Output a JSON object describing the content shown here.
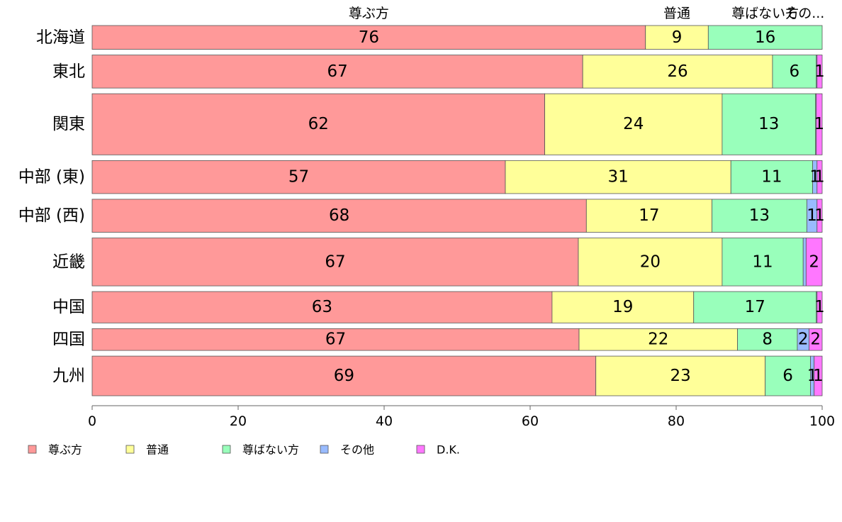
{
  "chart_data": {
    "type": "bar",
    "orientation": "horizontal",
    "stacked": true,
    "categories": [
      "北海道",
      "東北",
      "関東",
      "中部 (東)",
      "中部 (西)",
      "近畿",
      "中国",
      "四国",
      "九州"
    ],
    "series": [
      {
        "name": "尊ぶ方",
        "color": "#ff9999",
        "values": [
          75.8,
          67.2,
          62.0,
          56.6,
          67.7,
          66.6,
          63.0,
          66.7,
          69.0
        ],
        "labels": [
          "76",
          "67",
          "62",
          "57",
          "68",
          "67",
          "63",
          "67",
          "69"
        ]
      },
      {
        "name": "普通",
        "color": "#ffff99",
        "values": [
          8.6,
          26.0,
          24.3,
          30.9,
          17.2,
          19.7,
          19.4,
          21.7,
          23.2
        ],
        "labels": [
          "9",
          "26",
          "24",
          "31",
          "17",
          "20",
          "19",
          "22",
          "23"
        ]
      },
      {
        "name": "尊ばない方",
        "color": "#99ffbb",
        "values": [
          15.6,
          6.0,
          12.8,
          11.2,
          13.0,
          11.1,
          16.8,
          8.2,
          6.2
        ],
        "labels": [
          "16",
          "6",
          "13",
          "11",
          "13",
          "11",
          "17",
          "8",
          "6"
        ]
      },
      {
        "name": "その他",
        "color": "#99bbff",
        "values": [
          0.0,
          0.1,
          0.1,
          0.6,
          1.4,
          0.4,
          0.1,
          1.6,
          0.5
        ],
        "labels": [
          "",
          "",
          "",
          "1",
          "1",
          "",
          "",
          "2",
          "1"
        ]
      },
      {
        "name": "D.K.",
        "color": "#ff77ff",
        "values": [
          0.0,
          0.7,
          0.8,
          0.7,
          0.7,
          2.2,
          0.7,
          1.8,
          1.1
        ],
        "labels": [
          "",
          "1",
          "1",
          "1",
          "1",
          "2",
          "1",
          "2",
          "1"
        ]
      }
    ],
    "bar_weights": [
      0.72,
      1.0,
      1.85,
      1.0,
      1.0,
      1.45,
      0.95,
      0.66,
      1.2
    ],
    "top_labels": [
      "尊ぶ方",
      "普通",
      "尊ばない方",
      "その..."
    ],
    "xlim": [
      0,
      100
    ],
    "xticks": [
      0,
      20,
      40,
      60,
      80,
      100
    ],
    "title": "",
    "xlabel": "",
    "ylabel": "",
    "grid": false,
    "legend": {
      "position": "bottom-left",
      "entries": [
        "尊ぶ方",
        "普通",
        "尊ばない方",
        "その他",
        "D.K."
      ]
    }
  }
}
